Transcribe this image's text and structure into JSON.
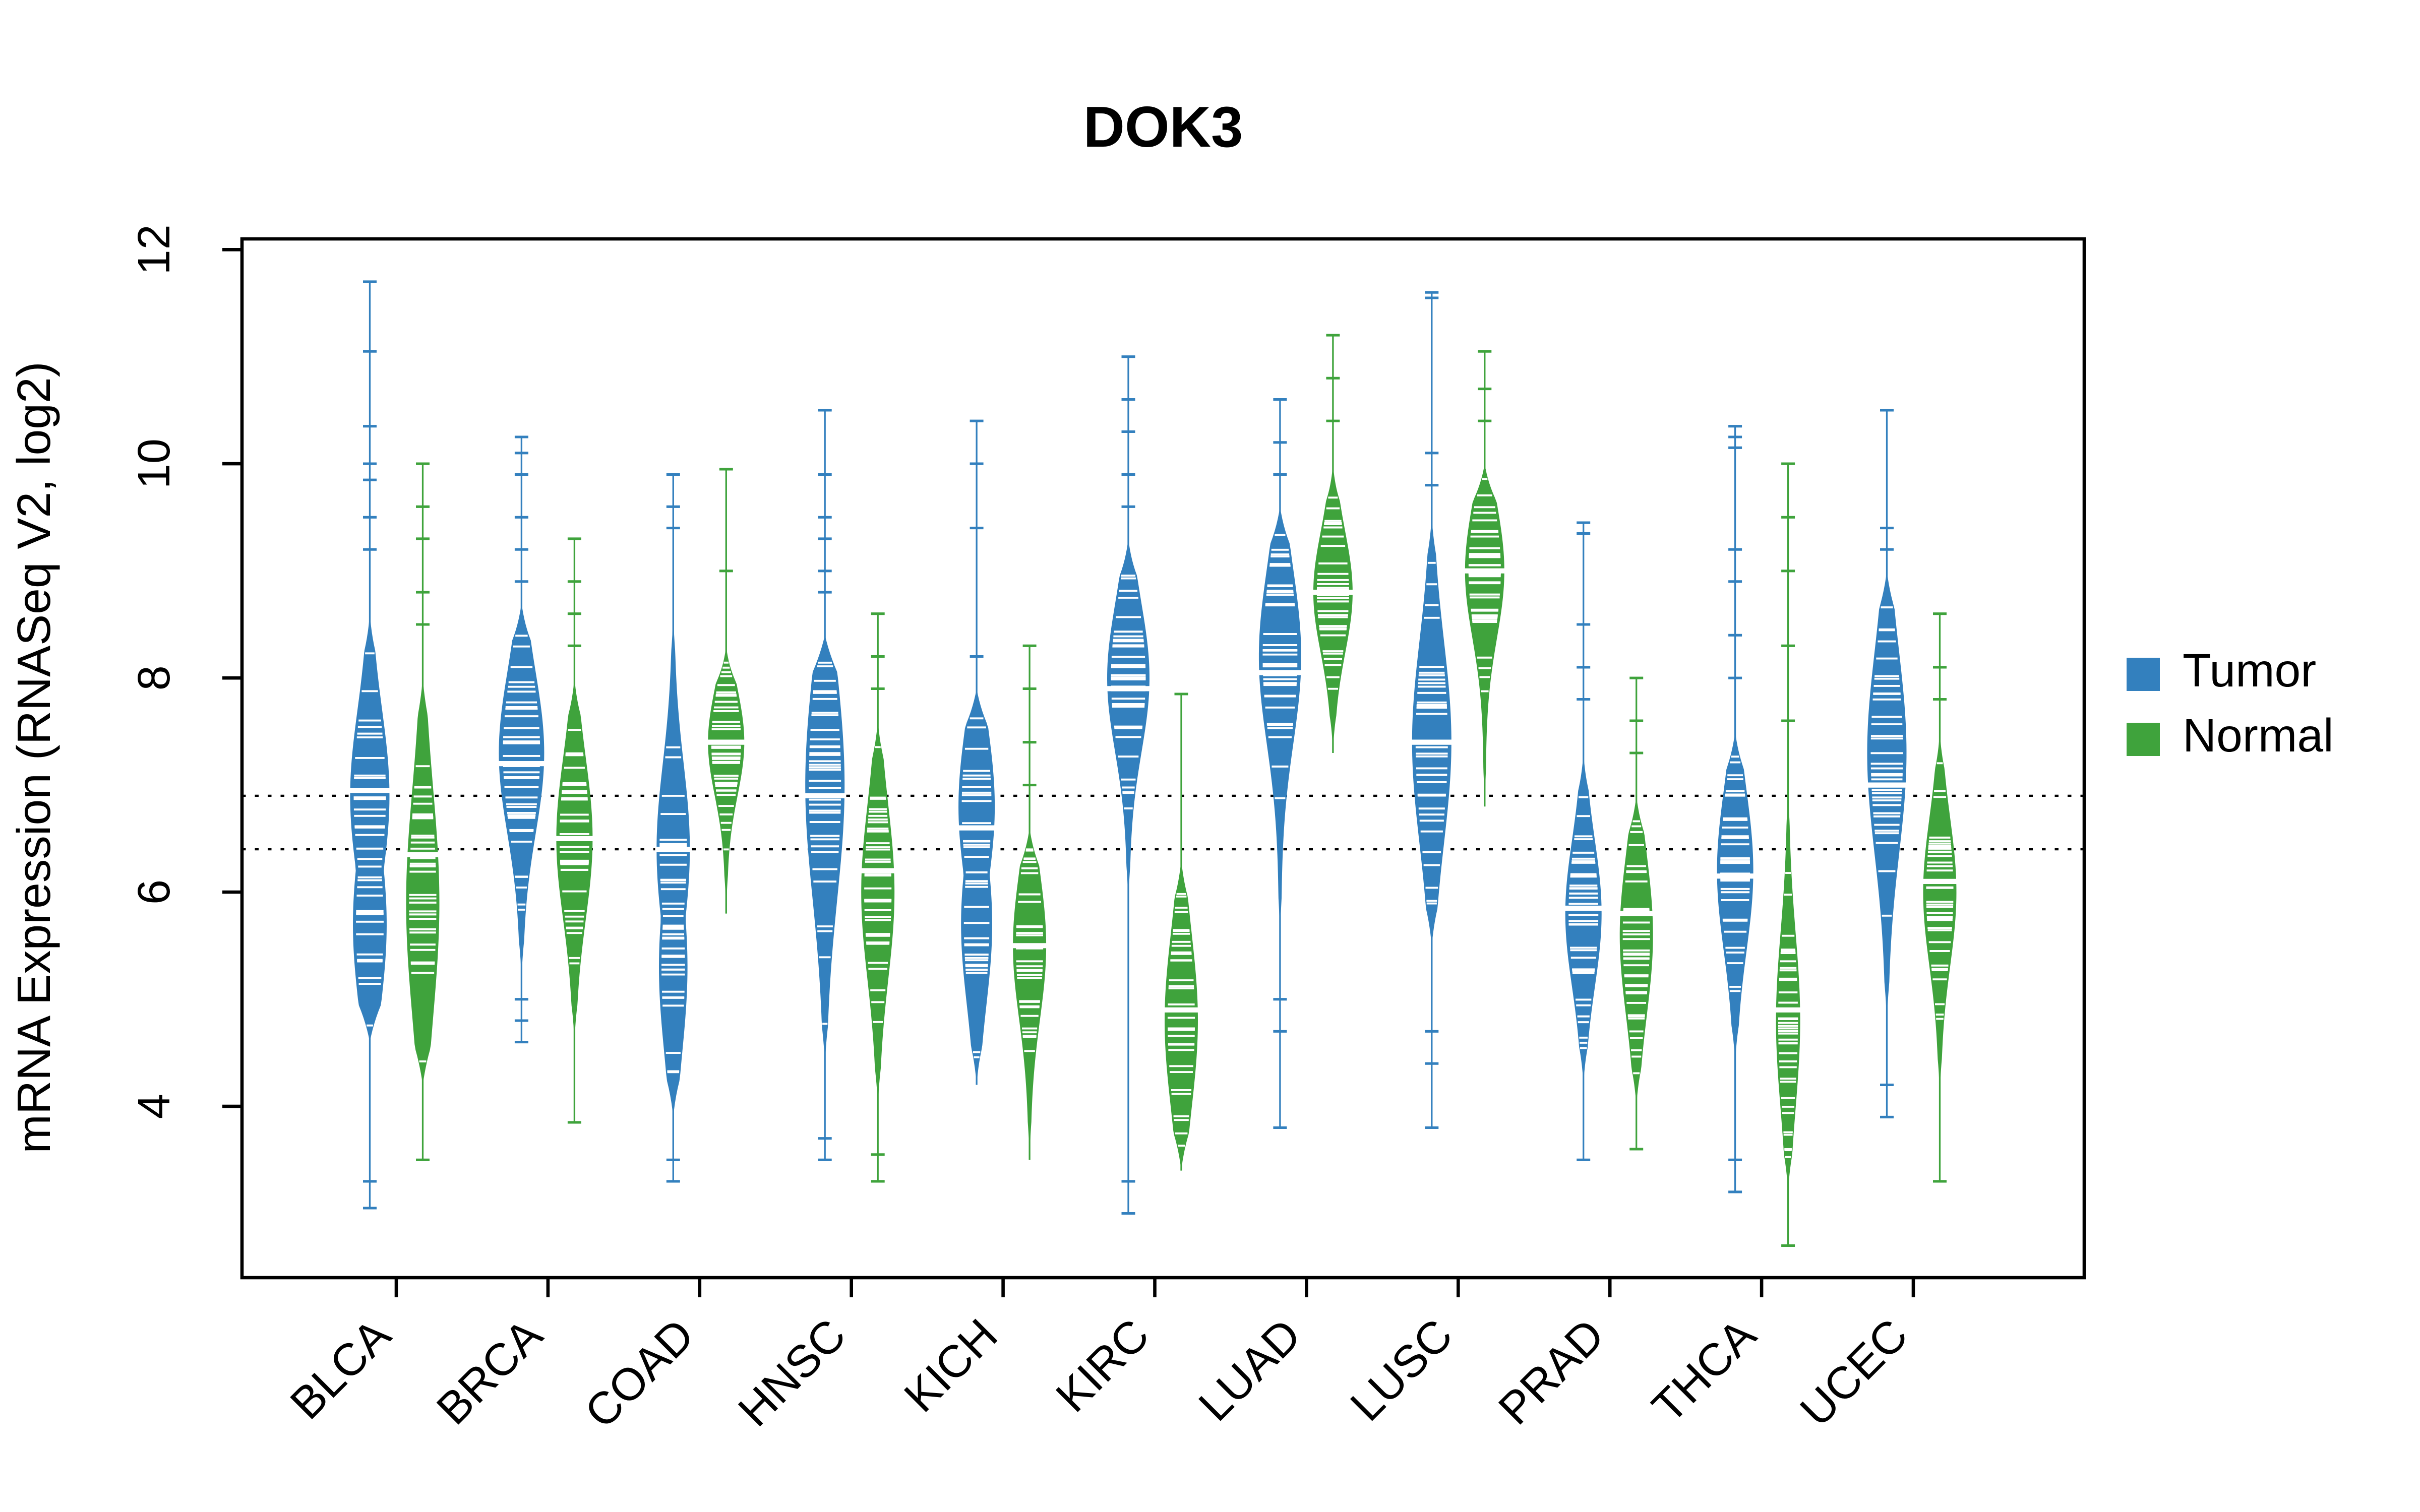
{
  "chart_data": {
    "type": "violin",
    "title": "DOK3",
    "xlabel": "",
    "ylabel": "mRNA Expression (RNASeq V2, log2)",
    "ylim": [
      2.4,
      12.1
    ],
    "yticks": [
      4,
      6,
      8,
      10,
      12
    ],
    "grid": false,
    "categories": [
      "BLCA",
      "BRCA",
      "COAD",
      "HNSC",
      "KICH",
      "KIRC",
      "LUAD",
      "LUSC",
      "PRAD",
      "THCA",
      "UCEC"
    ],
    "groups": [
      "Tumor",
      "Normal"
    ],
    "group_colors": {
      "Tumor": "#3380be",
      "Normal": "#3fa33c"
    },
    "reference_lines": [
      6.9,
      6.4
    ],
    "legend": {
      "position": "right",
      "items": [
        "Tumor",
        "Normal"
      ]
    },
    "series": [
      {
        "category": "BLCA",
        "group": "Tumor",
        "lo": 4.6,
        "hi": 8.6,
        "q1": 6.0,
        "median": 6.95,
        "q3": 7.6,
        "modes": [
          6.9,
          5.7
        ],
        "w": 13,
        "outliers": [
          9.2,
          9.5,
          9.85,
          10.0,
          10.35,
          11.05,
          11.7,
          3.3,
          3.05
        ]
      },
      {
        "category": "BLCA",
        "group": "Normal",
        "lo": 4.2,
        "hi": 8.0,
        "q1": 5.3,
        "median": 6.35,
        "q3": 7.0,
        "modes": [
          5.9
        ],
        "w": 11,
        "outliers": [
          8.5,
          8.8,
          9.3,
          9.6,
          10.0,
          3.5
        ]
      },
      {
        "category": "BRCA",
        "group": "Tumor",
        "lo": 5.2,
        "hi": 8.7,
        "q1": 6.6,
        "median": 7.2,
        "q3": 7.8,
        "modes": [
          7.3
        ],
        "w": 15,
        "outliers": [
          4.6,
          4.8,
          5.0,
          8.9,
          9.2,
          9.5,
          9.9,
          10.1,
          10.25
        ]
      },
      {
        "category": "BRCA",
        "group": "Normal",
        "lo": 4.6,
        "hi": 8.0,
        "q1": 5.9,
        "median": 6.5,
        "q3": 7.1,
        "modes": [
          6.5
        ],
        "w": 12,
        "outliers": [
          3.85,
          8.3,
          8.6,
          8.9,
          9.3
        ]
      },
      {
        "category": "COAD",
        "group": "Tumor",
        "lo": 3.9,
        "hi": 8.6,
        "q1": 5.6,
        "median": 6.4,
        "q3": 7.2,
        "modes": [
          6.4,
          5.3
        ],
        "w": 11,
        "outliers": [
          3.3,
          3.5,
          9.4,
          9.6,
          9.9
        ]
      },
      {
        "category": "COAD",
        "group": "Normal",
        "lo": 5.8,
        "hi": 8.3,
        "q1": 7.0,
        "median": 7.4,
        "q3": 7.8,
        "modes": [
          7.4
        ],
        "w": 12,
        "outliers": [
          9.0,
          9.95
        ]
      },
      {
        "category": "HNSC",
        "group": "Tumor",
        "lo": 4.4,
        "hi": 8.4,
        "q1": 6.1,
        "median": 6.9,
        "q3": 7.8,
        "modes": [
          7.0
        ],
        "w": 13,
        "outliers": [
          3.5,
          3.7,
          8.8,
          9.0,
          9.3,
          9.5,
          9.9,
          10.5
        ]
      },
      {
        "category": "HNSC",
        "group": "Normal",
        "lo": 4.0,
        "hi": 7.6,
        "q1": 5.5,
        "median": 6.2,
        "q3": 6.8,
        "modes": [
          6.0
        ],
        "w": 11,
        "outliers": [
          3.3,
          3.55,
          7.9,
          8.2,
          8.6
        ]
      },
      {
        "category": "KICH",
        "group": "Tumor",
        "lo": 4.2,
        "hi": 7.9,
        "q1": 5.7,
        "median": 6.6,
        "q3": 7.2,
        "modes": [
          6.8,
          5.7
        ],
        "w": 12,
        "outliers": [
          8.2,
          9.4,
          10.0,
          10.4
        ]
      },
      {
        "category": "KICH",
        "group": "Normal",
        "lo": 3.5,
        "hi": 6.6,
        "q1": 4.9,
        "median": 5.5,
        "q3": 6.0,
        "modes": [
          5.5
        ],
        "w": 11,
        "outliers": [
          7.0,
          7.4,
          7.9,
          8.3
        ]
      },
      {
        "category": "KIRC",
        "group": "Tumor",
        "lo": 5.9,
        "hi": 9.3,
        "q1": 7.4,
        "median": 7.9,
        "q3": 8.5,
        "modes": [
          8.0
        ],
        "w": 14,
        "outliers": [
          3.0,
          3.3,
          9.6,
          9.9,
          10.3,
          10.6,
          11.0
        ]
      },
      {
        "category": "KIRC",
        "group": "Normal",
        "lo": 3.4,
        "hi": 6.3,
        "q1": 4.3,
        "median": 4.9,
        "q3": 5.6,
        "modes": [
          4.8
        ],
        "w": 11,
        "outliers": [
          7.85
        ]
      },
      {
        "category": "LUAD",
        "group": "Tumor",
        "lo": 5.6,
        "hi": 9.6,
        "q1": 7.5,
        "median": 8.05,
        "q3": 8.8,
        "modes": [
          8.2
        ],
        "w": 14,
        "outliers": [
          3.8,
          4.7,
          5.0,
          9.9,
          10.2,
          10.6
        ]
      },
      {
        "category": "LUAD",
        "group": "Normal",
        "lo": 7.3,
        "hi": 10.0,
        "q1": 8.4,
        "median": 8.8,
        "q3": 9.3,
        "modes": [
          8.8
        ],
        "w": 13,
        "outliers": [
          10.4,
          10.8,
          11.2
        ]
      },
      {
        "category": "LUSC",
        "group": "Tumor",
        "lo": 5.5,
        "hi": 9.5,
        "q1": 6.8,
        "median": 7.4,
        "q3": 8.3,
        "modes": [
          7.4
        ],
        "w": 13,
        "outliers": [
          3.8,
          4.4,
          4.7,
          9.8,
          10.1,
          11.55,
          11.6
        ]
      },
      {
        "category": "LUSC",
        "group": "Normal",
        "lo": 6.8,
        "hi": 10.0,
        "q1": 8.5,
        "median": 9.0,
        "q3": 9.5,
        "modes": [
          9.0
        ],
        "w": 13,
        "outliers": [
          10.4,
          10.7,
          11.05
        ]
      },
      {
        "category": "PRAD",
        "group": "Tumor",
        "lo": 4.2,
        "hi": 7.3,
        "q1": 5.3,
        "median": 5.85,
        "q3": 6.4,
        "modes": [
          5.8
        ],
        "w": 12,
        "outliers": [
          3.5,
          7.8,
          8.1,
          8.5,
          9.35,
          9.45
        ]
      },
      {
        "category": "PRAD",
        "group": "Normal",
        "lo": 4.0,
        "hi": 6.9,
        "q1": 5.0,
        "median": 5.8,
        "q3": 6.2,
        "modes": [
          5.6
        ],
        "w": 11,
        "outliers": [
          3.6,
          7.3,
          7.6,
          8.0
        ]
      },
      {
        "category": "THCA",
        "group": "Tumor",
        "lo": 4.4,
        "hi": 7.5,
        "q1": 5.6,
        "median": 6.15,
        "q3": 6.8,
        "modes": [
          6.2
        ],
        "w": 12,
        "outliers": [
          3.2,
          3.5,
          8.0,
          8.4,
          8.9,
          9.2,
          10.15,
          10.25,
          10.35
        ]
      },
      {
        "category": "THCA",
        "group": "Normal",
        "lo": 3.2,
        "hi": 7.0,
        "q1": 4.3,
        "median": 4.9,
        "q3": 5.6,
        "modes": [
          4.8
        ],
        "w": 8,
        "outliers": [
          2.7,
          7.6,
          8.3,
          9.0,
          9.5,
          10.0
        ]
      },
      {
        "category": "UCEC",
        "group": "Tumor",
        "lo": 4.8,
        "hi": 9.0,
        "q1": 6.4,
        "median": 7.0,
        "q3": 7.9,
        "modes": [
          7.3
        ],
        "w": 13,
        "outliers": [
          3.9,
          4.2,
          9.2,
          9.4,
          10.5
        ]
      },
      {
        "category": "UCEC",
        "group": "Normal",
        "lo": 4.1,
        "hi": 7.5,
        "q1": 5.5,
        "median": 6.1,
        "q3": 6.6,
        "modes": [
          6.0
        ],
        "w": 11,
        "outliers": [
          3.3,
          7.8,
          8.1,
          8.6
        ]
      }
    ]
  }
}
